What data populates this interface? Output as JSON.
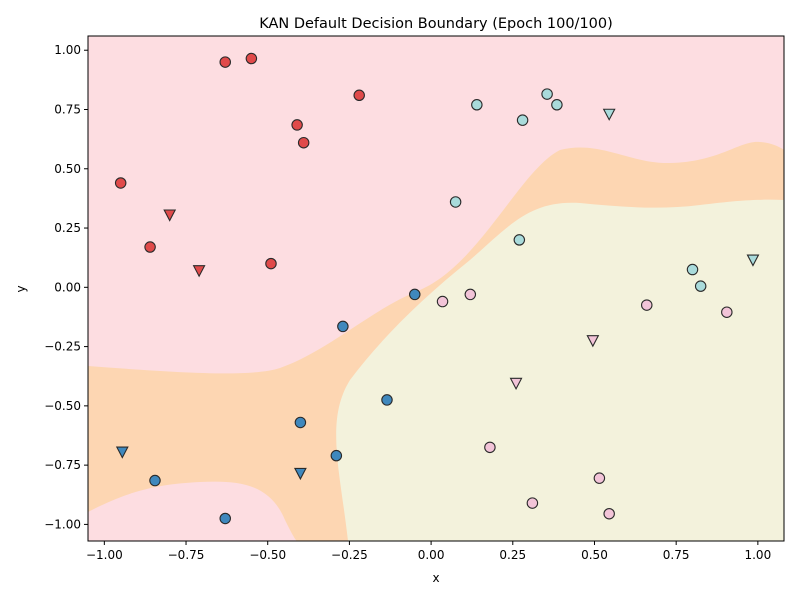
{
  "chart_data": {
    "type": "scatter",
    "title": "KAN Default Decision Boundary (Epoch 100/100)",
    "xlabel": "x",
    "ylabel": "y",
    "xlim": [
      -1.05,
      1.08
    ],
    "ylim": [
      -1.07,
      1.06
    ],
    "xticks": [
      -1.0,
      -0.75,
      -0.5,
      -0.25,
      0.0,
      0.25,
      0.5,
      0.75,
      1.0
    ],
    "xtick_labels": [
      "−1.00",
      "−0.75",
      "−0.50",
      "−0.25",
      "0.00",
      "0.25",
      "0.50",
      "0.75",
      "1.00"
    ],
    "yticks": [
      -1.0,
      -0.75,
      -0.5,
      -0.25,
      0.0,
      0.25,
      0.5,
      0.75,
      1.0
    ],
    "ytick_labels": [
      "−1.00",
      "−0.75",
      "−0.50",
      "−0.25",
      "0.00",
      "0.25",
      "0.50",
      "0.75",
      "1.00"
    ],
    "grid": false,
    "regions": {
      "colors": {
        "red_region": "#fddde1",
        "middle_region": "#fdd6b2",
        "green_region": "#f3f2dc"
      }
    },
    "classes": {
      "red": "#e04a4a",
      "light_blue": "#a9dbdb",
      "pink": "#f2c4d8",
      "blue": "#3f88bd"
    },
    "series": [
      {
        "class": "red",
        "marker": "circle",
        "points": [
          [
            -0.63,
            0.95
          ],
          [
            -0.55,
            0.965
          ],
          [
            -0.22,
            0.81
          ],
          [
            -0.41,
            0.685
          ],
          [
            -0.39,
            0.61
          ],
          [
            -0.95,
            0.44
          ],
          [
            -0.86,
            0.17
          ],
          [
            -0.49,
            0.1
          ]
        ]
      },
      {
        "class": "red",
        "marker": "triangle",
        "points": [
          [
            -0.8,
            0.305
          ],
          [
            -0.71,
            0.07
          ]
        ]
      },
      {
        "class": "light_blue",
        "marker": "circle",
        "points": [
          [
            0.14,
            0.77
          ],
          [
            0.355,
            0.815
          ],
          [
            0.385,
            0.77
          ],
          [
            0.28,
            0.705
          ],
          [
            0.075,
            0.36
          ],
          [
            0.27,
            0.2
          ],
          [
            0.8,
            0.075
          ],
          [
            0.825,
            0.005
          ]
        ]
      },
      {
        "class": "light_blue",
        "marker": "triangle",
        "points": [
          [
            0.545,
            0.73
          ],
          [
            0.985,
            0.115
          ]
        ]
      },
      {
        "class": "pink",
        "marker": "circle",
        "points": [
          [
            0.035,
            -0.06
          ],
          [
            0.12,
            -0.03
          ],
          [
            0.66,
            -0.075
          ],
          [
            0.905,
            -0.105
          ],
          [
            0.18,
            -0.675
          ],
          [
            0.515,
            -0.805
          ],
          [
            0.31,
            -0.91
          ],
          [
            0.545,
            -0.955
          ]
        ]
      },
      {
        "class": "pink",
        "marker": "triangle",
        "points": [
          [
            0.495,
            -0.225
          ],
          [
            0.26,
            -0.405
          ]
        ]
      },
      {
        "class": "blue",
        "marker": "circle",
        "points": [
          [
            -0.05,
            -0.03
          ],
          [
            -0.27,
            -0.165
          ],
          [
            -0.135,
            -0.475
          ],
          [
            -0.4,
            -0.57
          ],
          [
            -0.29,
            -0.71
          ],
          [
            -0.845,
            -0.815
          ],
          [
            -0.63,
            -0.975
          ]
        ]
      },
      {
        "class": "blue",
        "marker": "triangle",
        "points": [
          [
            -0.945,
            -0.695
          ],
          [
            -0.4,
            -0.785
          ]
        ]
      }
    ]
  }
}
